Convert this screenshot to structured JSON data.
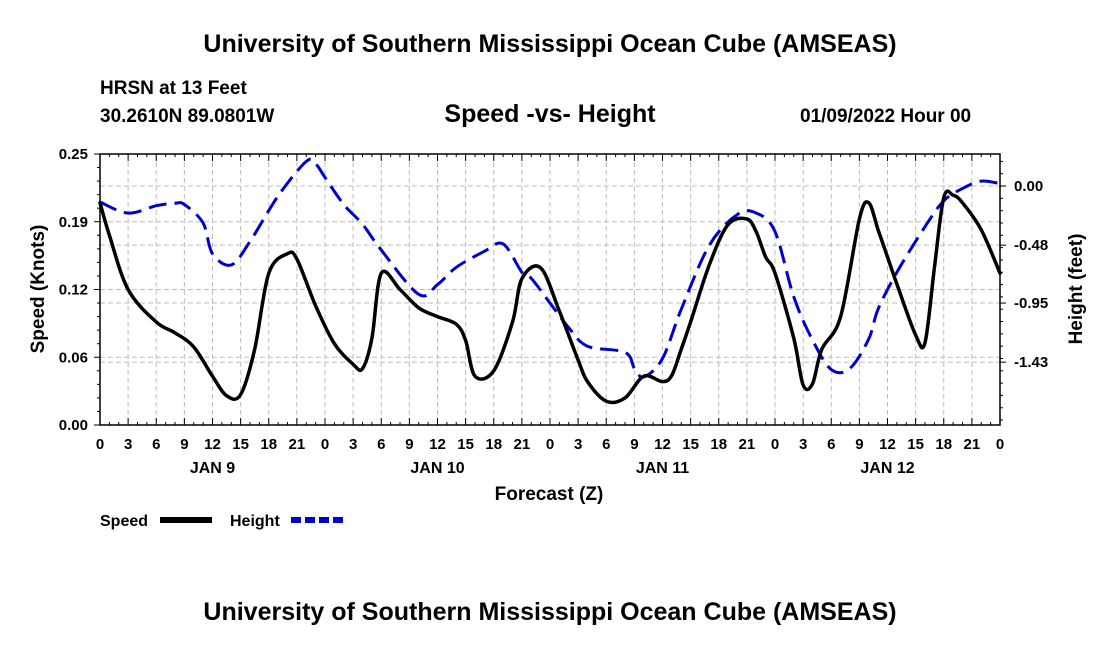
{
  "header": {
    "title": "University of Southern Mississippi Ocean Cube (AMSEAS)",
    "station": "HRSN at 13 Feet",
    "coords": "30.2610N  89.0801W",
    "subtitle": "Speed -vs- Height",
    "datetime": "01/09/2022 Hour 00"
  },
  "footer": {
    "title": "University of Southern Mississippi Ocean Cube (AMSEAS)"
  },
  "chart_data": {
    "type": "line",
    "title": "Speed -vs- Height",
    "xlabel": "Forecast (Z)",
    "ylabel": "Speed (Knots)",
    "y2label": "Height (feet)",
    "xlim": [
      0,
      96
    ],
    "ylim": [
      0,
      0.25
    ],
    "y2lim": [
      -1.94,
      0.26
    ],
    "x_tick_labels": [
      "0",
      "3",
      "6",
      "9",
      "12",
      "15",
      "18",
      "21",
      "0",
      "3",
      "6",
      "9",
      "12",
      "15",
      "18",
      "21",
      "0",
      "3",
      "6",
      "9",
      "12",
      "15",
      "18",
      "21",
      "0",
      "3",
      "6",
      "9",
      "12",
      "15",
      "18",
      "21",
      "0"
    ],
    "date_labels": [
      {
        "label": "JAN 9",
        "x": 12
      },
      {
        "label": "JAN 10",
        "x": 36
      },
      {
        "label": "JAN 11",
        "x": 60
      },
      {
        "label": "JAN 12",
        "x": 84
      }
    ],
    "y_tick_labels": [
      "0.00",
      "0.06",
      "0.12",
      "0.19",
      "0.25"
    ],
    "y_tick_values": [
      0,
      0.0625,
      0.125,
      0.1875,
      0.25
    ],
    "y2_tick_labels": [
      "-1.43",
      "-0.95",
      "-0.48",
      "0.00"
    ],
    "y2_tick_values": [
      -1.43,
      -0.95,
      -0.48,
      0.0
    ],
    "grid": true,
    "legend_position": "bottom-left",
    "series": [
      {
        "name": "Speed",
        "axis": "left",
        "color": "#000000",
        "dash": "solid",
        "x": [
          0,
          1,
          3,
          6,
          8,
          10,
          12,
          13.5,
          15,
          16.5,
          18,
          20,
          21,
          23,
          25,
          27,
          28,
          29,
          30,
          32,
          34,
          36,
          38,
          39,
          40,
          42,
          44,
          45,
          47,
          49,
          51,
          52,
          54,
          56,
          58,
          60,
          61,
          62,
          63,
          65,
          67,
          69,
          70,
          71,
          72,
          74,
          75,
          76,
          77,
          79,
          81,
          82,
          83,
          84,
          85,
          87,
          88,
          89,
          90,
          91,
          92,
          94,
          96
        ],
        "y": [
          0.205,
          0.175,
          0.125,
          0.095,
          0.085,
          0.072,
          0.045,
          0.027,
          0.028,
          0.07,
          0.14,
          0.158,
          0.153,
          0.11,
          0.075,
          0.056,
          0.052,
          0.08,
          0.14,
          0.125,
          0.108,
          0.1,
          0.093,
          0.078,
          0.045,
          0.05,
          0.095,
          0.135,
          0.145,
          0.105,
          0.06,
          0.04,
          0.022,
          0.025,
          0.045,
          0.04,
          0.046,
          0.07,
          0.095,
          0.148,
          0.185,
          0.19,
          0.178,
          0.155,
          0.14,
          0.08,
          0.037,
          0.038,
          0.07,
          0.1,
          0.19,
          0.205,
          0.18,
          0.155,
          0.13,
          0.083,
          0.076,
          0.145,
          0.21,
          0.212,
          0.205,
          0.18,
          0.14
        ]
      },
      {
        "name": "Height",
        "axis": "right",
        "color": "#0000cc",
        "dash": "dashed",
        "x": [
          0,
          3,
          6,
          8,
          9,
          11,
          12,
          14,
          16,
          19,
          22,
          23,
          24,
          26,
          28,
          30,
          34,
          36,
          38,
          41,
          43,
          45,
          46,
          48,
          50,
          52,
          56,
          57,
          58,
          60,
          62,
          65,
          68,
          70,
          72,
          74,
          76,
          78,
          80,
          82,
          83,
          85,
          88,
          90,
          92,
          94,
          96
        ],
        "y": [
          -0.13,
          -0.22,
          -0.16,
          -0.14,
          -0.15,
          -0.3,
          -0.55,
          -0.64,
          -0.45,
          -0.08,
          0.2,
          0.18,
          0.07,
          -0.15,
          -0.31,
          -0.52,
          -0.88,
          -0.8,
          -0.66,
          -0.53,
          -0.47,
          -0.7,
          -0.75,
          -0.95,
          -1.15,
          -1.3,
          -1.35,
          -1.48,
          -1.55,
          -1.4,
          -1.0,
          -0.48,
          -0.23,
          -0.22,
          -0.37,
          -0.9,
          -1.25,
          -1.49,
          -1.48,
          -1.24,
          -1.0,
          -0.7,
          -0.33,
          -0.12,
          -0.02,
          0.04,
          0.02
        ]
      }
    ]
  },
  "legend": {
    "speed_label": "Speed",
    "height_label": "Height"
  }
}
